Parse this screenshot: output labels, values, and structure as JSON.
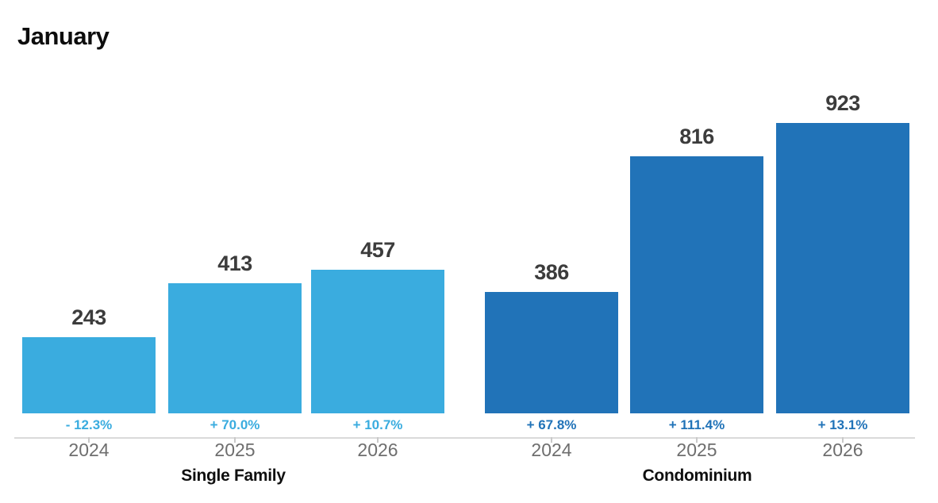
{
  "chart_data": {
    "type": "bar",
    "title": "January",
    "categories": [
      "2024",
      "2025",
      "2026"
    ],
    "groups": [
      {
        "label": "Single Family",
        "color": "#3AACDF",
        "bars": [
          {
            "year": "2024",
            "value": 243,
            "change": "- 12.3%"
          },
          {
            "year": "2025",
            "value": 413,
            "change": "+ 70.0%"
          },
          {
            "year": "2026",
            "value": 457,
            "change": "+ 10.7%"
          }
        ]
      },
      {
        "label": "Condominium",
        "color": "#2173B8",
        "bars": [
          {
            "year": "2024",
            "value": 386,
            "change": "+ 67.8%"
          },
          {
            "year": "2025",
            "value": 816,
            "change": "+ 111.4%"
          },
          {
            "year": "2026",
            "value": 923,
            "change": "+ 13.1%"
          }
        ]
      }
    ],
    "ylim": [
      0,
      923
    ],
    "grid": "off",
    "legend": "none",
    "colors": {
      "background": "#FFFFFF",
      "value_label": "#3C3C3C",
      "year_label": "#6E6E6E",
      "group_label": "#0F0F0F",
      "axis_line": "#DADADA",
      "axis_tick": "#C9C9C9",
      "title": "#0D0D0D"
    }
  }
}
